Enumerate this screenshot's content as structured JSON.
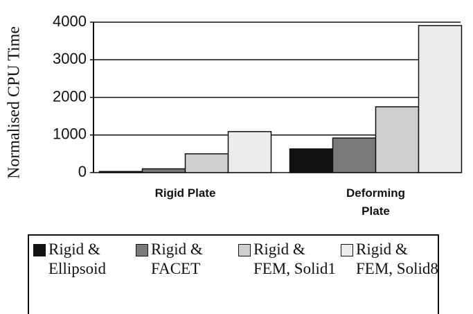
{
  "chart_data": {
    "type": "bar",
    "y_label": "Normalised CPU Time",
    "categories": [
      "Rigid Plate",
      "Deforming Plate"
    ],
    "series": [
      {
        "name": "Rigid & Ellipsoid",
        "color": "#111111",
        "values": [
          30,
          630
        ]
      },
      {
        "name": "Rigid & FACET",
        "color": "#7a7a7a",
        "values": [
          100,
          920
        ]
      },
      {
        "name": "Rigid & FEM, Solid1",
        "color": "#cfcfcf",
        "values": [
          500,
          1750
        ]
      },
      {
        "name": "Rigid & FEM, Solid8",
        "color": "#ececec",
        "values": [
          1090,
          3910
        ]
      }
    ],
    "ylim": [
      0,
      4000
    ],
    "yticks": [
      0,
      1000,
      2000,
      3000,
      4000
    ],
    "grid": true
  }
}
